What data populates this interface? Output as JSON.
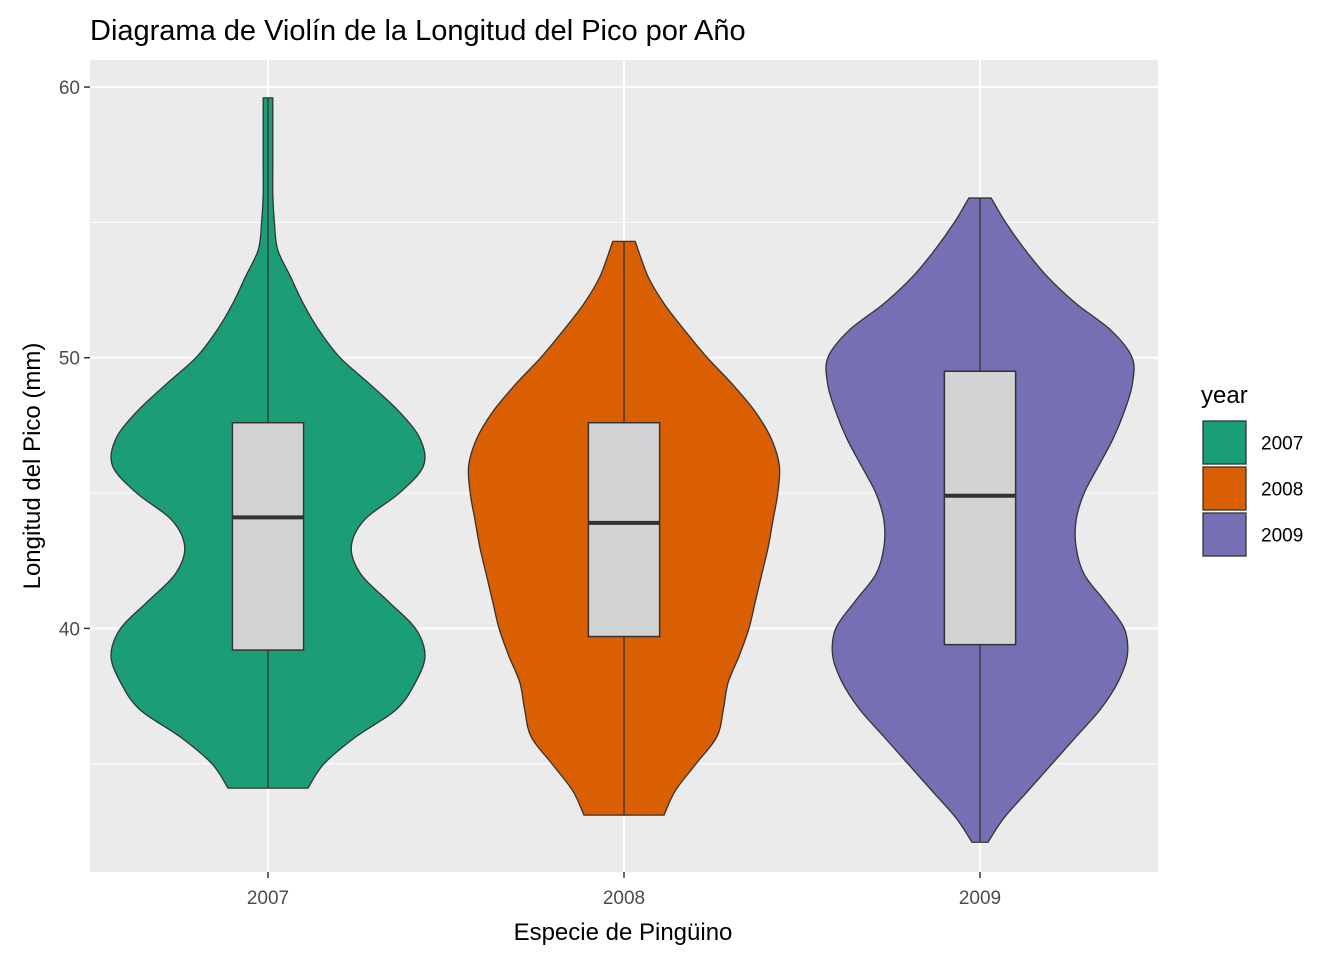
{
  "chart_data": {
    "type": "violin",
    "title": "Diagrama de Violín de la Longitud del Pico por Año",
    "xlabel": "Especie de Pingüino",
    "ylabel": "Longitud del Pico (mm)",
    "categories": [
      "2007",
      "2008",
      "2009"
    ],
    "ylim": [
      31,
      61
    ],
    "yticks": [
      40,
      50,
      60
    ],
    "grid": true,
    "legend": {
      "title": "year",
      "placement": "right",
      "entries": [
        "2007",
        "2008",
        "2009"
      ]
    },
    "colors": {
      "2007": "#1b9e77",
      "2008": "#d95f02",
      "2009": "#7570b3",
      "box_fill": "#d3d3d3",
      "panel_bg": "#ebebeb",
      "grid": "#ffffff",
      "outline": "#333333"
    },
    "series": [
      {
        "name": "2007",
        "min": 34.1,
        "max": 59.6,
        "box": {
          "q1": 39.2,
          "median": 44.1,
          "q3": 47.6,
          "lower_whisker": 34.1,
          "upper_whisker": 59.6
        },
        "density_halfwidth": [
          [
            34.1,
            0.25
          ],
          [
            35.0,
            0.35
          ],
          [
            36.0,
            0.55
          ],
          [
            37.0,
            0.8
          ],
          [
            38.0,
            0.92
          ],
          [
            39.0,
            0.98
          ],
          [
            40.0,
            0.92
          ],
          [
            41.0,
            0.75
          ],
          [
            42.0,
            0.58
          ],
          [
            43.0,
            0.52
          ],
          [
            44.0,
            0.6
          ],
          [
            45.0,
            0.82
          ],
          [
            46.0,
            0.97
          ],
          [
            47.0,
            0.95
          ],
          [
            48.0,
            0.82
          ],
          [
            49.0,
            0.64
          ],
          [
            50.0,
            0.45
          ],
          [
            51.0,
            0.32
          ],
          [
            52.0,
            0.22
          ],
          [
            53.0,
            0.14
          ],
          [
            54.0,
            0.06
          ],
          [
            55.0,
            0.04
          ],
          [
            56.0,
            0.03
          ],
          [
            57.0,
            0.03
          ],
          [
            58.0,
            0.03
          ],
          [
            59.6,
            0.03
          ]
        ]
      },
      {
        "name": "2008",
        "min": 33.1,
        "max": 54.3,
        "box": {
          "q1": 39.7,
          "median": 43.9,
          "q3": 47.6,
          "lower_whisker": 33.1,
          "upper_whisker": 54.3
        },
        "density_halfwidth": [
          [
            33.1,
            0.25
          ],
          [
            34.0,
            0.32
          ],
          [
            35.0,
            0.45
          ],
          [
            36.0,
            0.58
          ],
          [
            37.0,
            0.62
          ],
          [
            38.0,
            0.65
          ],
          [
            39.0,
            0.72
          ],
          [
            40.0,
            0.78
          ],
          [
            41.0,
            0.82
          ],
          [
            42.0,
            0.86
          ],
          [
            43.0,
            0.9
          ],
          [
            44.0,
            0.93
          ],
          [
            45.0,
            0.96
          ],
          [
            46.0,
            0.97
          ],
          [
            47.0,
            0.92
          ],
          [
            48.0,
            0.82
          ],
          [
            49.0,
            0.68
          ],
          [
            50.0,
            0.52
          ],
          [
            51.0,
            0.38
          ],
          [
            52.0,
            0.25
          ],
          [
            53.0,
            0.15
          ],
          [
            54.3,
            0.07
          ]
        ]
      },
      {
        "name": "2009",
        "min": 32.1,
        "max": 55.9,
        "box": {
          "q1": 39.4,
          "median": 44.9,
          "q3": 49.5,
          "lower_whisker": 32.1,
          "upper_whisker": 55.9
        },
        "density_halfwidth": [
          [
            32.1,
            0.05
          ],
          [
            33.0,
            0.15
          ],
          [
            34.0,
            0.3
          ],
          [
            35.0,
            0.45
          ],
          [
            36.0,
            0.6
          ],
          [
            37.0,
            0.75
          ],
          [
            38.0,
            0.86
          ],
          [
            39.0,
            0.92
          ],
          [
            40.0,
            0.9
          ],
          [
            41.0,
            0.78
          ],
          [
            42.0,
            0.65
          ],
          [
            43.0,
            0.6
          ],
          [
            44.0,
            0.6
          ],
          [
            45.0,
            0.65
          ],
          [
            46.0,
            0.74
          ],
          [
            47.0,
            0.83
          ],
          [
            48.0,
            0.9
          ],
          [
            49.0,
            0.95
          ],
          [
            50.0,
            0.95
          ],
          [
            51.0,
            0.82
          ],
          [
            52.0,
            0.6
          ],
          [
            53.0,
            0.42
          ],
          [
            54.0,
            0.28
          ],
          [
            55.0,
            0.16
          ],
          [
            55.9,
            0.07
          ]
        ]
      }
    ]
  }
}
